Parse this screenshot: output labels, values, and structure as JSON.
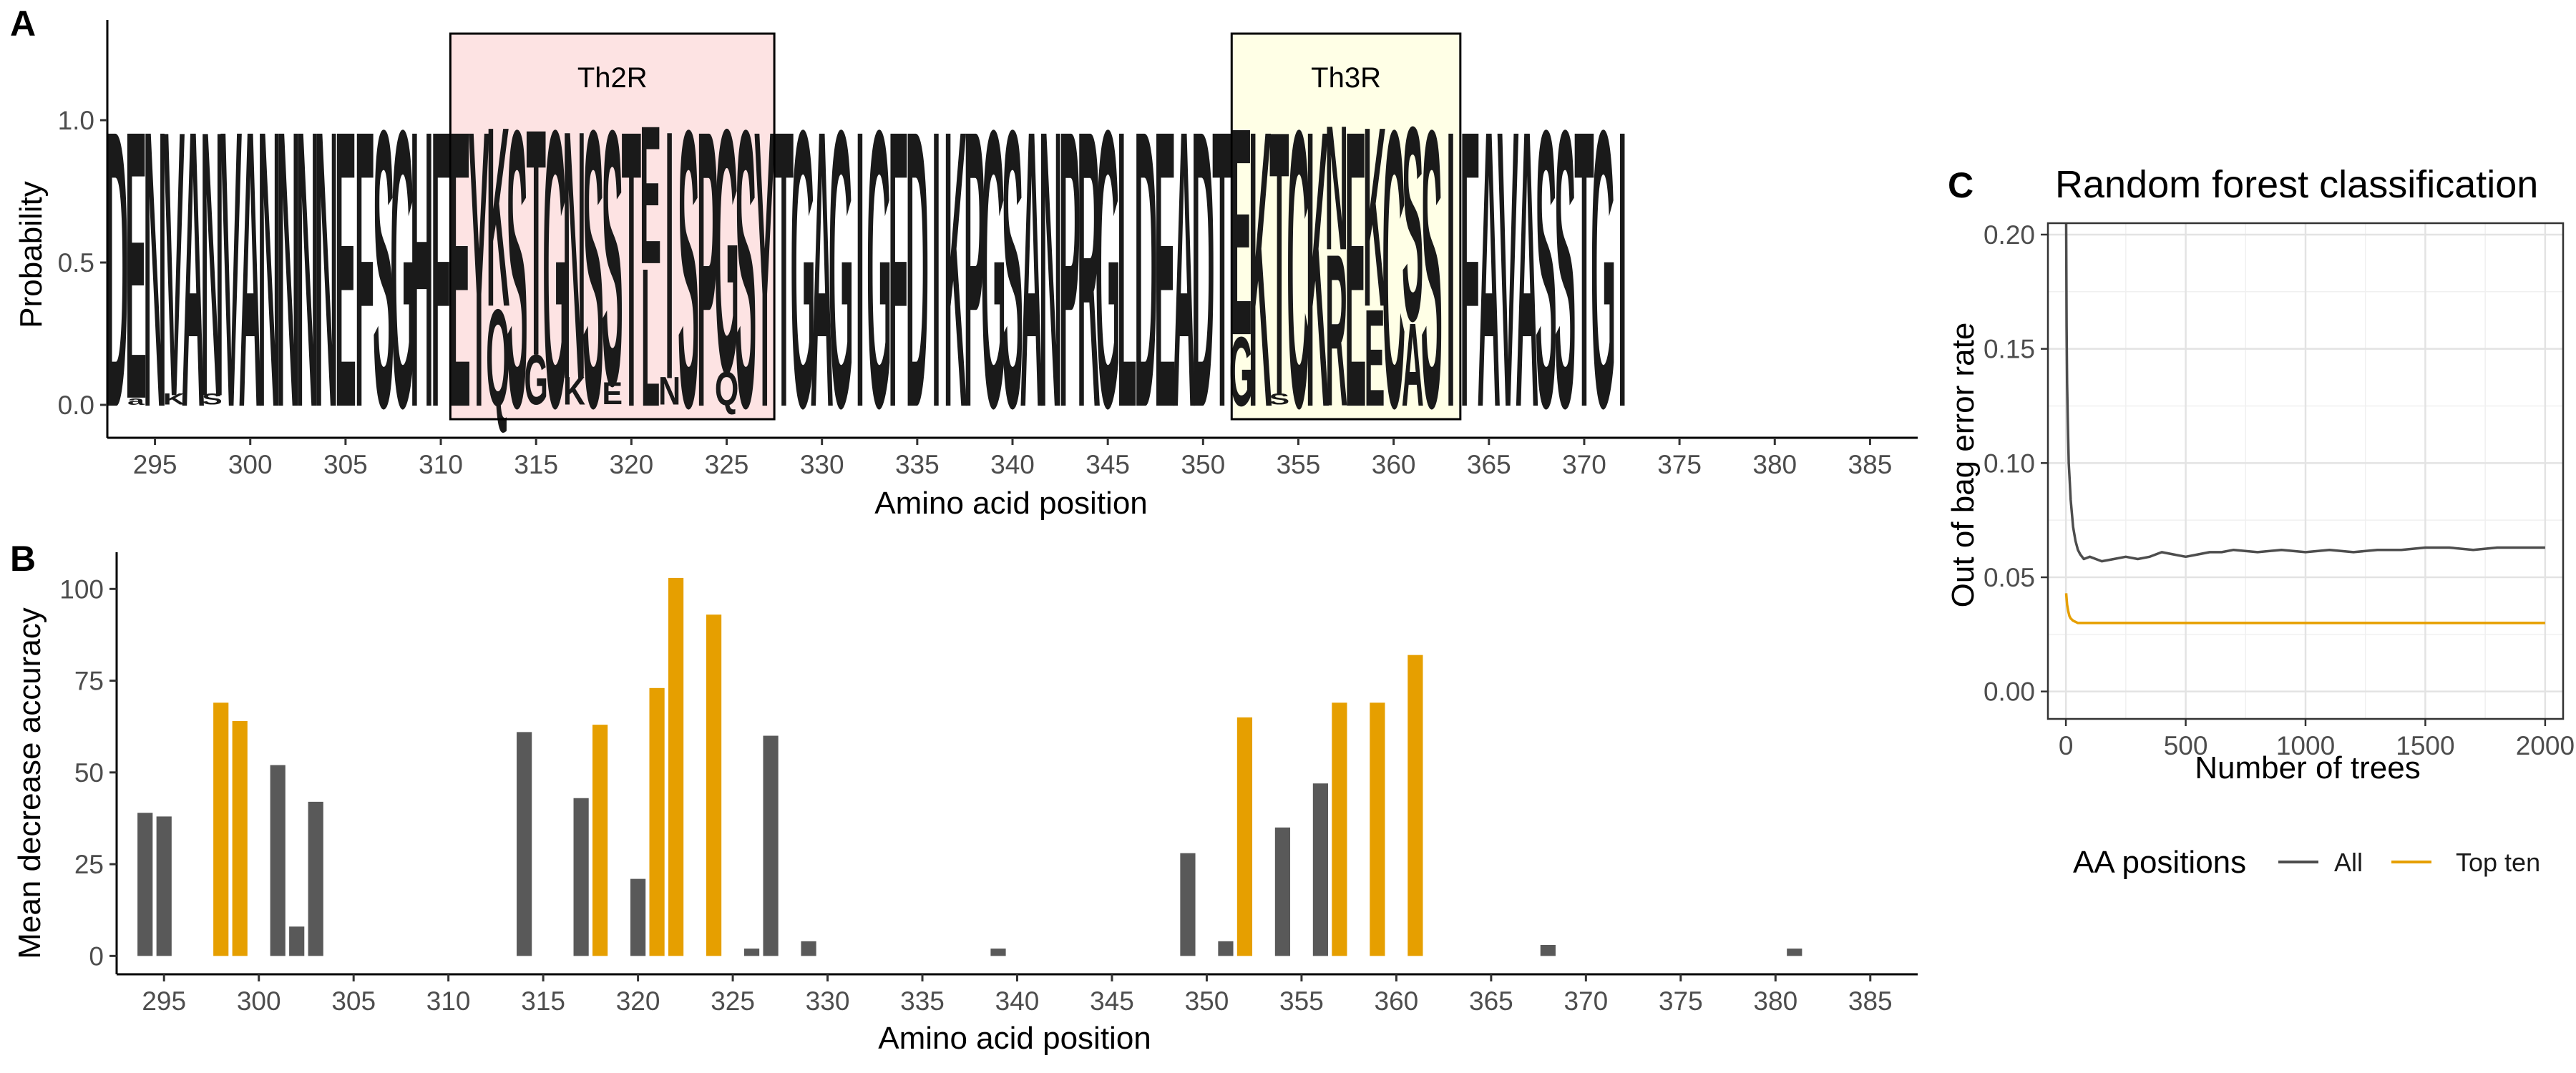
{
  "panels": {
    "a": {
      "letter": "A"
    },
    "b": {
      "letter": "B"
    },
    "c": {
      "letter": "C"
    }
  },
  "chart_data": [
    {
      "panel": "A",
      "type": "sequence-logo",
      "title": "",
      "xlabel": "Amino acid position",
      "ylabel": "Probability",
      "xlim": [
        292.5,
        387.5
      ],
      "ylim": [
        0,
        1
      ],
      "x_ticks": [
        295,
        300,
        305,
        310,
        315,
        320,
        325,
        330,
        335,
        340,
        345,
        350,
        355,
        360,
        365,
        370,
        375,
        380,
        385
      ],
      "y_ticks": [
        "0.0",
        "0.5",
        "1.0"
      ],
      "y_tick_values": [
        0,
        0.5,
        1
      ],
      "regions": [
        {
          "label": "Th2R",
          "start": 310.5,
          "end": 327.5,
          "color": "#fde3e3"
        },
        {
          "label": "Th3R",
          "start": 351.5,
          "end": 363.5,
          "color": "#ffffe6"
        }
      ],
      "consensus_start": 293,
      "consensus": "DENVANVANNNNEFSGHFEYKSTGNSSTEISPGSYTGAGIGFDIKPGSANPRGLDEADTEKTCKNEKCSSIFAVASSTGI",
      "minor_residues": [
        {
          "position": 294,
          "residue": "a",
          "probability": 0.03
        },
        {
          "position": 296,
          "residue": "K",
          "probability": 0.04
        },
        {
          "position": 298,
          "residue": "S",
          "probability": 0.04
        },
        {
          "position": 313,
          "residue": "Q",
          "probability": 0.35
        },
        {
          "position": 315,
          "residue": "G",
          "probability": 0.18
        },
        {
          "position": 317,
          "residue": "K",
          "probability": 0.1
        },
        {
          "position": 319,
          "residue": "E",
          "probability": 0.08
        },
        {
          "position": 321,
          "residue": "L",
          "probability": 0.5
        },
        {
          "position": 322,
          "residue": "N",
          "probability": 0.1
        },
        {
          "position": 325,
          "residue": "Q",
          "probability": 0.12
        },
        {
          "position": 352,
          "residue": "G",
          "probability": 0.25
        },
        {
          "position": 354,
          "residue": "S",
          "probability": 0.04
        },
        {
          "position": 357,
          "residue": "R",
          "probability": 0.55
        },
        {
          "position": 359,
          "residue": "E",
          "probability": 0.35
        },
        {
          "position": 361,
          "residue": "A",
          "probability": 0.3
        }
      ]
    },
    {
      "panel": "B",
      "type": "bar",
      "title": "",
      "xlabel": "Amino acid position",
      "ylabel": "Mean decrease accuracy",
      "xlim": [
        292.5,
        387.5
      ],
      "ylim": [
        -5,
        110
      ],
      "x_ticks": [
        295,
        300,
        305,
        310,
        315,
        320,
        325,
        330,
        335,
        340,
        345,
        350,
        355,
        360,
        365,
        370,
        375,
        380,
        385
      ],
      "y_ticks": [
        0,
        25,
        50,
        75,
        100
      ],
      "colors": {
        "all": "#595959",
        "top_ten": "#e69f00"
      },
      "positions": [
        294,
        295,
        298,
        299,
        301,
        302,
        303,
        314,
        317,
        318,
        320,
        321,
        322,
        324,
        326,
        327,
        329,
        339,
        349,
        351,
        352,
        354,
        356,
        357,
        359,
        361,
        368,
        381
      ],
      "values": [
        39,
        38,
        69,
        64,
        52,
        8,
        42,
        61,
        43,
        63,
        21,
        73,
        103,
        93,
        2,
        60,
        4,
        2,
        28,
        4,
        65,
        35,
        47,
        69,
        69,
        82,
        3,
        2
      ],
      "top_ten": [
        false,
        false,
        true,
        true,
        false,
        false,
        false,
        false,
        false,
        true,
        false,
        true,
        true,
        true,
        false,
        false,
        false,
        false,
        false,
        false,
        true,
        false,
        false,
        true,
        true,
        true,
        false,
        false
      ]
    },
    {
      "panel": "C",
      "type": "line",
      "title": "Random forest classification",
      "xlabel": "Number of trees",
      "ylabel": "Out of bag error rate",
      "xlim": [
        -75,
        2075
      ],
      "ylim": [
        -0.012,
        0.205
      ],
      "x_ticks": [
        0,
        500,
        1000,
        1500,
        2000
      ],
      "y_ticks": [
        "0.00",
        "0.05",
        "0.10",
        "0.15",
        "0.20"
      ],
      "y_tick_values": [
        0,
        0.05,
        0.1,
        0.15,
        0.2
      ],
      "grid": true,
      "legend": {
        "title": "AA positions",
        "position": "bottom"
      },
      "series": [
        {
          "name": "All",
          "color": "#4d4d4d",
          "x": [
            1,
            3,
            5,
            8,
            12,
            16,
            20,
            25,
            30,
            40,
            50,
            60,
            75,
            100,
            125,
            150,
            200,
            250,
            300,
            350,
            400,
            450,
            500,
            550,
            600,
            650,
            700,
            800,
            900,
            1000,
            1100,
            1200,
            1300,
            1400,
            1500,
            1600,
            1700,
            1800,
            1900,
            2000
          ],
          "y": [
            0.205,
            0.16,
            0.135,
            0.118,
            0.1,
            0.092,
            0.084,
            0.078,
            0.072,
            0.066,
            0.062,
            0.06,
            0.058,
            0.059,
            0.058,
            0.057,
            0.058,
            0.059,
            0.058,
            0.059,
            0.061,
            0.06,
            0.059,
            0.06,
            0.061,
            0.061,
            0.062,
            0.061,
            0.062,
            0.061,
            0.062,
            0.061,
            0.062,
            0.062,
            0.063,
            0.063,
            0.062,
            0.063,
            0.063,
            0.063
          ]
        },
        {
          "name": "Top ten",
          "color": "#e69f00",
          "x": [
            1,
            5,
            10,
            15,
            20,
            30,
            50,
            100,
            200,
            400,
            700,
            1000,
            1500,
            2000
          ],
          "y": [
            0.043,
            0.038,
            0.035,
            0.033,
            0.032,
            0.031,
            0.03,
            0.03,
            0.03,
            0.03,
            0.03,
            0.03,
            0.03,
            0.03
          ]
        }
      ]
    }
  ]
}
